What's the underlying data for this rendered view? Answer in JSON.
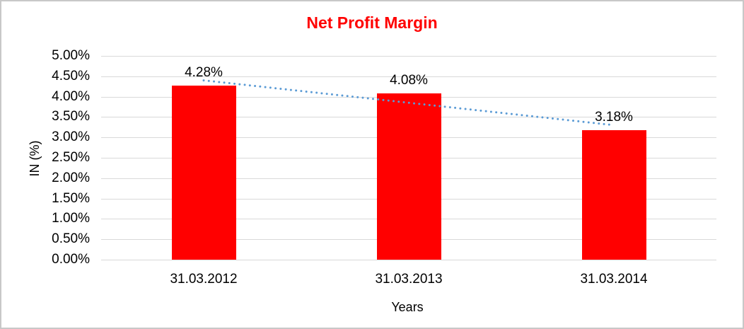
{
  "window": {
    "background_color": "#FFFFFF",
    "border_color": "#C8C8C8"
  },
  "chart_data": {
    "type": "bar",
    "title": "Net Profit Margin",
    "title_color": "#FF0000",
    "xlabel": "Years",
    "ylabel": "IN (%)",
    "categories": [
      "31.03.2012",
      "31.03.2013",
      "31.03.2014"
    ],
    "values": [
      4.28,
      4.08,
      3.18
    ],
    "data_labels": [
      "4.28%",
      "4.08%",
      "3.18%"
    ],
    "bar_color": "#FF0000",
    "ylim": [
      0,
      5
    ],
    "ytick_step": 0.5,
    "ytick_labels": [
      "0.00%",
      "0.50%",
      "1.00%",
      "1.50%",
      "2.00%",
      "2.50%",
      "3.00%",
      "3.50%",
      "4.00%",
      "4.50%",
      "5.00%"
    ],
    "gridline_color": "#D9D9D9",
    "text_color": "#000000",
    "legend": "none",
    "trendline": {
      "type": "linear",
      "style": "dotted",
      "color": "#5B9BD5",
      "start_value": 4.4,
      "end_value": 3.3
    }
  }
}
